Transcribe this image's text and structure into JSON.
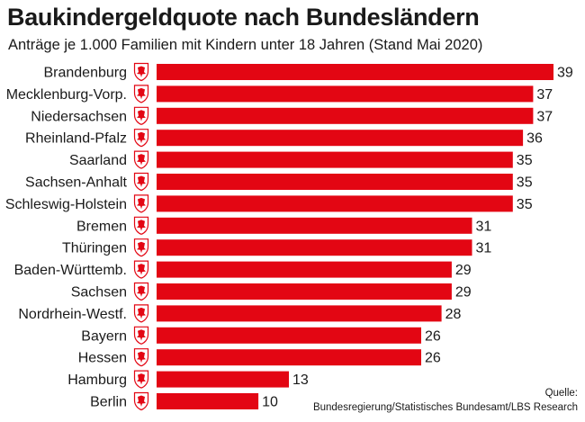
{
  "title": "Baukindergeldquote nach Bundesländern",
  "subtitle": "Anträge je 1.000 Familien mit Kindern unter 18 Jahren (Stand Mai 2020)",
  "source_label": "Quelle:",
  "source_text": "Bundesregierung/Statistisches Bundesamt/LBS Research",
  "colors": {
    "bar": "#e30613",
    "text": "#1a1a1a"
  },
  "chart_data": {
    "type": "bar",
    "orientation": "horizontal",
    "title": "Baukindergeldquote nach Bundesländern",
    "subtitle": "Anträge je 1.000 Familien mit Kindern unter 18 Jahren (Stand Mai 2020)",
    "categories": [
      "Brandenburg",
      "Mecklenburg-Vorp.",
      "Niedersachsen",
      "Rheinland-Pfalz",
      "Saarland",
      "Sachsen-Anhalt",
      "Schleswig-Holstein",
      "Bremen",
      "Thüringen",
      "Baden-Württemb.",
      "Sachsen",
      "Nordrhein-Westf.",
      "Bayern",
      "Hessen",
      "Hamburg",
      "Berlin"
    ],
    "values": [
      39,
      37,
      37,
      36,
      35,
      35,
      35,
      31,
      31,
      29,
      29,
      28,
      26,
      26,
      13,
      10
    ],
    "icons": [
      "brandenburg-coat-of-arms-icon",
      "mecklenburg-vorpommern-coat-of-arms-icon",
      "niedersachsen-coat-of-arms-icon",
      "rheinland-pfalz-coat-of-arms-icon",
      "saarland-coat-of-arms-icon",
      "sachsen-anhalt-coat-of-arms-icon",
      "schleswig-holstein-coat-of-arms-icon",
      "bremen-coat-of-arms-icon",
      "thueringen-coat-of-arms-icon",
      "baden-wuerttemberg-coat-of-arms-icon",
      "sachsen-coat-of-arms-icon",
      "nordrhein-westfalen-coat-of-arms-icon",
      "bayern-coat-of-arms-icon",
      "hessen-coat-of-arms-icon",
      "hamburg-coat-of-arms-icon",
      "berlin-coat-of-arms-icon"
    ],
    "xlim": [
      0,
      39
    ],
    "grid": false,
    "data_labels": true
  }
}
